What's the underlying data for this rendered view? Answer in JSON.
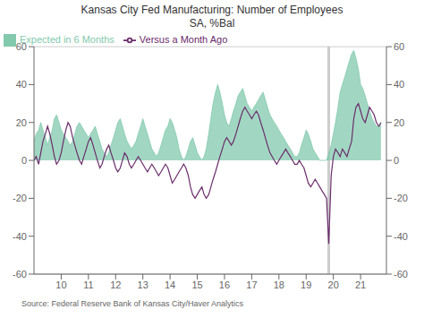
{
  "chart_data": {
    "type": "line",
    "title": "Kansas City Fed Manufacturing: Number of Employees\nSA, %Bal",
    "source": "Source:  Federal Reserve Bank of Kansas City/Haver Analytics",
    "x": [
      9.0,
      9.08,
      9.17,
      9.25,
      9.33,
      9.42,
      9.5,
      9.58,
      9.67,
      9.75,
      9.83,
      9.92,
      10.0,
      10.08,
      10.17,
      10.25,
      10.33,
      10.42,
      10.5,
      10.58,
      10.67,
      10.75,
      10.83,
      10.92,
      11.0,
      11.08,
      11.17,
      11.25,
      11.33,
      11.42,
      11.5,
      11.58,
      11.67,
      11.75,
      11.83,
      11.92,
      12.0,
      12.08,
      12.17,
      12.25,
      12.33,
      12.42,
      12.5,
      12.58,
      12.67,
      12.75,
      12.83,
      12.92,
      13.0,
      13.08,
      13.17,
      13.25,
      13.33,
      13.42,
      13.5,
      13.58,
      13.67,
      13.75,
      13.83,
      13.92,
      14.0,
      14.08,
      14.17,
      14.25,
      14.33,
      14.42,
      14.5,
      14.58,
      14.67,
      14.75,
      14.83,
      14.92,
      15.0,
      15.08,
      15.17,
      15.25,
      15.33,
      15.42,
      15.5,
      15.58,
      15.67,
      15.75,
      15.83,
      15.92,
      16.0,
      16.08,
      16.17,
      16.25,
      16.33,
      16.42,
      16.5,
      16.58,
      16.67,
      16.75,
      16.83,
      16.92,
      17.0,
      17.08,
      17.17,
      17.25,
      17.33,
      17.42,
      17.5,
      17.58,
      17.67,
      17.75,
      17.83,
      17.92,
      18.0,
      18.08,
      18.17,
      18.25,
      18.33,
      18.42,
      18.5,
      18.58,
      18.67,
      18.75,
      18.83,
      18.92,
      19.0,
      19.08,
      19.17,
      19.25,
      19.33,
      19.42,
      19.5,
      19.58,
      19.67,
      19.75,
      19.83,
      19.92,
      20.0,
      20.08,
      20.17,
      20.25,
      20.33,
      20.42,
      20.5,
      20.58,
      20.67,
      20.75,
      20.83,
      20.92,
      21.0,
      21.08,
      21.17,
      21.25,
      21.33,
      21.42,
      21.5,
      21.58,
      21.67,
      21.75
    ],
    "series": [
      {
        "name": "Expected in 6 Months",
        "type": "area",
        "color": "#82c9ad",
        "values": [
          10,
          14,
          16,
          20,
          16,
          12,
          8,
          12,
          16,
          22,
          24,
          20,
          16,
          14,
          12,
          10,
          8,
          10,
          14,
          18,
          20,
          18,
          16,
          14,
          12,
          14,
          16,
          18,
          14,
          10,
          6,
          4,
          2,
          4,
          8,
          12,
          16,
          20,
          22,
          18,
          14,
          10,
          8,
          6,
          8,
          10,
          14,
          18,
          22,
          18,
          14,
          10,
          6,
          4,
          2,
          4,
          8,
          12,
          16,
          18,
          22,
          20,
          16,
          12,
          6,
          2,
          0,
          2,
          6,
          10,
          12,
          8,
          4,
          2,
          0,
          2,
          6,
          14,
          22,
          30,
          36,
          40,
          36,
          30,
          24,
          20,
          18,
          22,
          26,
          30,
          34,
          36,
          38,
          34,
          30,
          28,
          26,
          28,
          30,
          32,
          34,
          36,
          32,
          28,
          24,
          22,
          20,
          18,
          16,
          14,
          12,
          10,
          8,
          6,
          4,
          2,
          2,
          4,
          8,
          12,
          16,
          14,
          10,
          6,
          4,
          2,
          0,
          0,
          0,
          0,
          4,
          8,
          14,
          20,
          28,
          36,
          40,
          44,
          48,
          52,
          56,
          58,
          54,
          48,
          40,
          38,
          34,
          30,
          26,
          22,
          20,
          18,
          18,
          20
        ]
      },
      {
        "name": "Versus a Month Ago",
        "type": "line",
        "color": "#6b2d6b",
        "values": [
          0,
          2,
          -2,
          4,
          10,
          14,
          18,
          14,
          8,
          2,
          -2,
          0,
          4,
          10,
          16,
          20,
          18,
          12,
          8,
          4,
          0,
          -2,
          2,
          6,
          10,
          12,
          8,
          4,
          0,
          -4,
          -2,
          2,
          6,
          8,
          4,
          0,
          -4,
          -6,
          -4,
          0,
          4,
          2,
          -2,
          -4,
          -2,
          0,
          2,
          0,
          -2,
          -4,
          -6,
          -4,
          -2,
          -4,
          -6,
          -8,
          -6,
          -4,
          -2,
          -4,
          -8,
          -12,
          -10,
          -8,
          -6,
          -4,
          -2,
          -4,
          -8,
          -14,
          -18,
          -20,
          -18,
          -16,
          -14,
          -18,
          -20,
          -18,
          -14,
          -10,
          -6,
          -2,
          2,
          6,
          10,
          12,
          10,
          8,
          10,
          14,
          18,
          22,
          26,
          28,
          26,
          24,
          22,
          24,
          26,
          24,
          20,
          16,
          12,
          8,
          4,
          2,
          0,
          -2,
          0,
          2,
          4,
          6,
          4,
          2,
          0,
          -2,
          -2,
          0,
          -2,
          -4,
          -8,
          -12,
          -14,
          -12,
          -10,
          -12,
          -14,
          -16,
          -18,
          -20,
          -44,
          -8,
          2,
          6,
          4,
          2,
          6,
          4,
          2,
          6,
          10,
          22,
          28,
          30,
          26,
          22,
          20,
          24,
          28,
          26,
          24,
          20,
          18,
          20
        ]
      }
    ],
    "vline": {
      "x": 19.83,
      "color": "#c0c0c0"
    },
    "xlim": [
      9.0,
      21.95
    ],
    "xticks": [
      10,
      11,
      12,
      13,
      14,
      15,
      16,
      17,
      18,
      19,
      20,
      21
    ],
    "ylim": [
      -60,
      60
    ],
    "yticks": [
      -60,
      -40,
      -20,
      0,
      20,
      40,
      60
    ],
    "y2lim": [
      -60,
      60
    ],
    "y2ticks": [
      -60,
      -40,
      -20,
      0,
      20,
      40,
      60
    ],
    "grid": "y",
    "legend": "upper left"
  }
}
